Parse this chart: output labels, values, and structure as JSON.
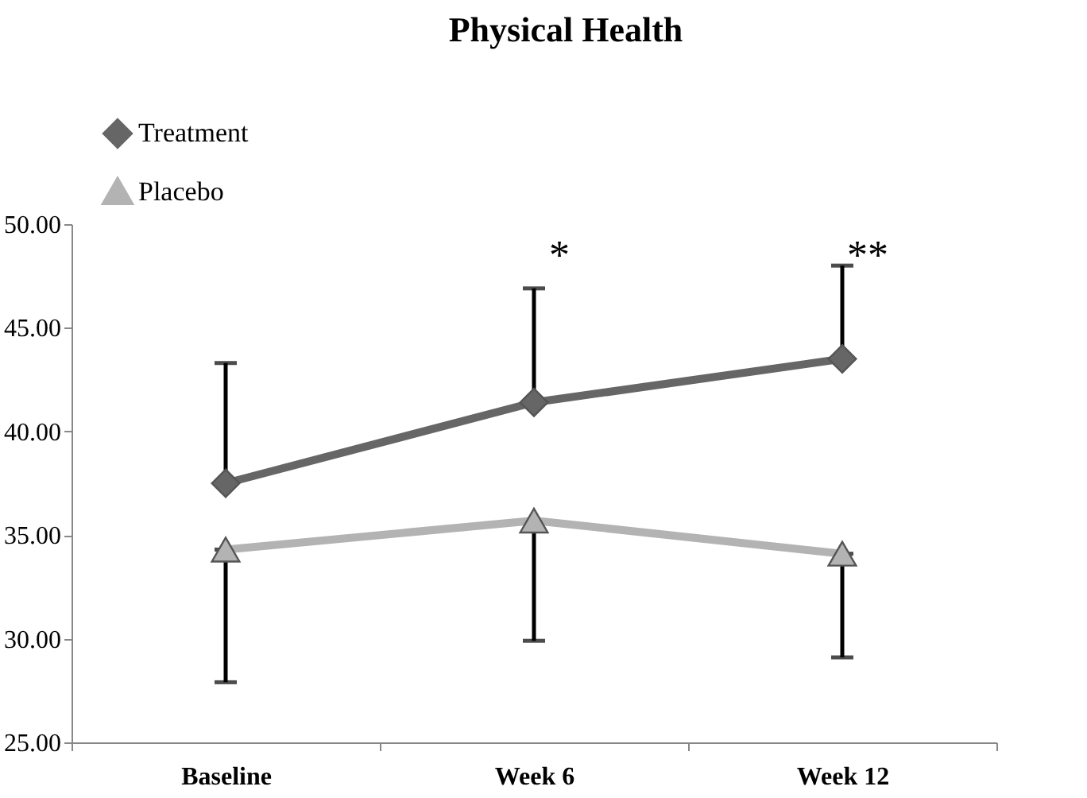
{
  "chart_data": {
    "type": "line",
    "title": "Physical Health",
    "categories": [
      "Baseline",
      "Week 6",
      "Week 12"
    ],
    "series": [
      {
        "name": "Treatment",
        "color": "#666666",
        "marker": "diamond",
        "values": [
          37.5,
          41.4,
          43.5
        ],
        "errors": [
          [
            37.5,
            43.3
          ],
          [
            41.4,
            46.9
          ],
          [
            43.5,
            48.0
          ]
        ]
      },
      {
        "name": "Placebo",
        "color": "#b3b3b3",
        "marker": "triangle",
        "values": [
          34.3,
          35.7,
          34.1
        ],
        "errors": [
          [
            27.9,
            34.3
          ],
          [
            29.9,
            35.7
          ],
          [
            29.1,
            34.1
          ]
        ]
      }
    ],
    "ylim": [
      25,
      50
    ],
    "yticks": [
      {
        "value": 25,
        "label": "25.00"
      },
      {
        "value": 30,
        "label": "30.00"
      },
      {
        "value": 35,
        "label": "35.00"
      },
      {
        "value": 40,
        "label": "40.00"
      },
      {
        "value": 45,
        "label": "45.00"
      },
      {
        "value": 50,
        "label": "50.00"
      }
    ],
    "annotations": [
      "*",
      "**"
    ],
    "legend": "top left",
    "grid": false,
    "line_style": "solid"
  }
}
